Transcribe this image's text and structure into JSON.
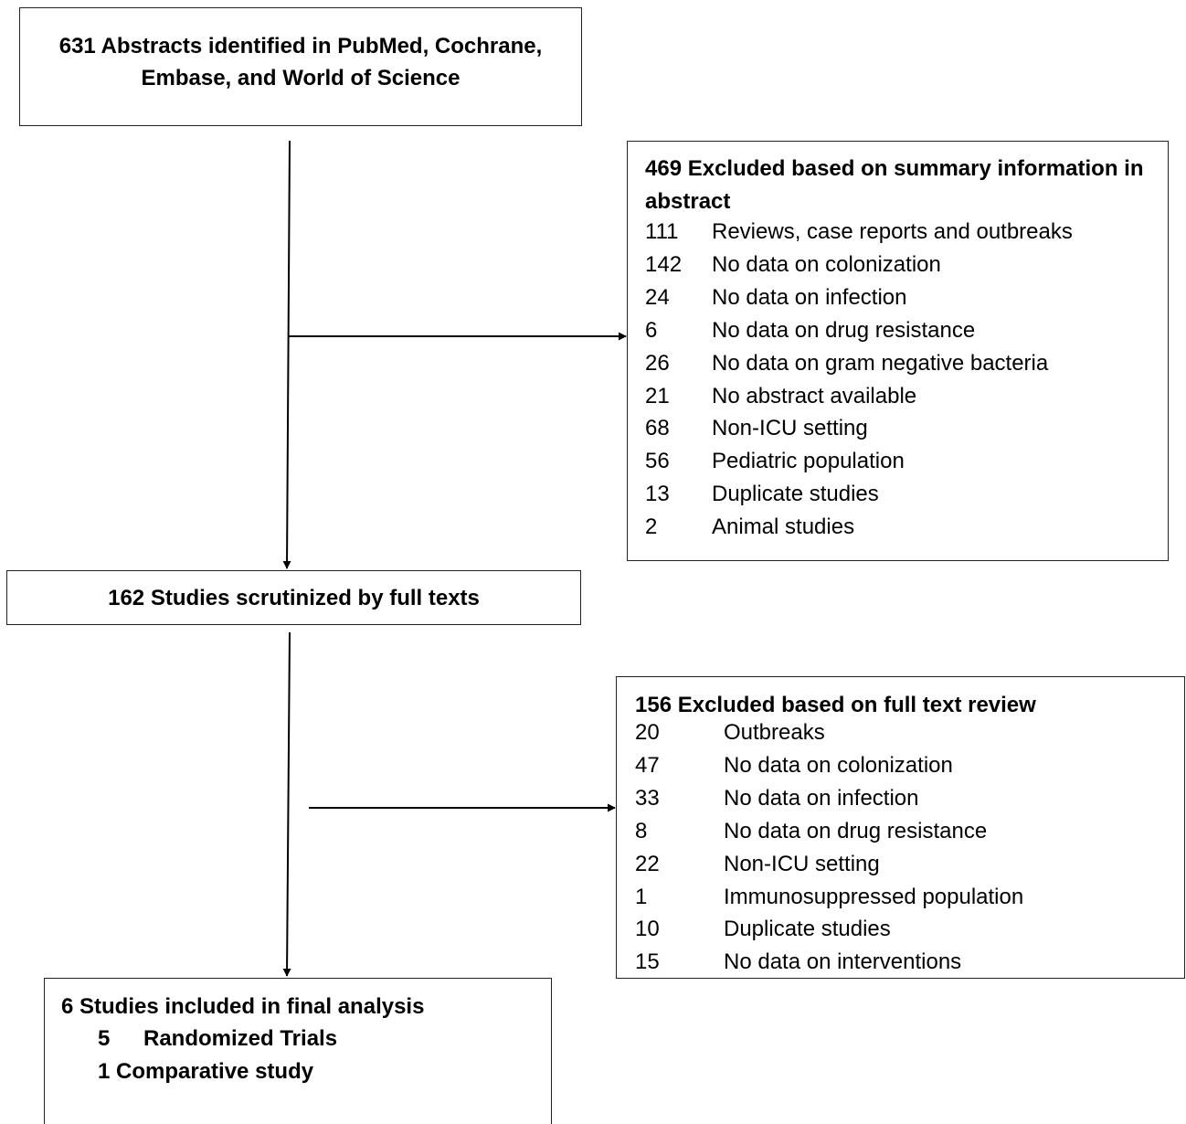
{
  "identified": {
    "text": "631 Abstracts identified in PubMed, Cochrane, Embase, and World of Science"
  },
  "excluded_abstract": {
    "heading": "469 Excluded based on summary information in abstract",
    "items": [
      {
        "n": "111",
        "label": "Reviews, case reports and outbreaks"
      },
      {
        "n": "142",
        "label": "No data on colonization"
      },
      {
        "n": "24",
        "label": "No data on infection"
      },
      {
        "n": "6",
        "label": "No data on drug resistance"
      },
      {
        "n": "26",
        "label": "No data on gram negative bacteria"
      },
      {
        "n": "21",
        "label": "No abstract available"
      },
      {
        "n": "68",
        "label": "Non-ICU setting"
      },
      {
        "n": "56",
        "label": "Pediatric population"
      },
      {
        "n": "13",
        "label": "Duplicate studies"
      },
      {
        "n": "2",
        "label": "Animal studies"
      }
    ]
  },
  "scrutinized": {
    "text": "162 Studies scrutinized by full texts"
  },
  "excluded_fulltext": {
    "heading": "156 Excluded based on full text review",
    "items": [
      {
        "n": "20",
        "label": "Outbreaks"
      },
      {
        "n": "47",
        "label": "No data on colonization"
      },
      {
        "n": "33",
        "label": "No data on infection"
      },
      {
        "n": "8",
        "label": "No data on drug resistance"
      },
      {
        "n": "22",
        "label": "Non-ICU setting"
      },
      {
        "n": "1",
        "label": "Immunosuppressed population"
      },
      {
        "n": "10",
        "label": "Duplicate studies"
      },
      {
        "n": "15",
        "label": "No data on interventions"
      }
    ]
  },
  "included": {
    "heading": "6 Studies included in final analysis",
    "line1_n": "5",
    "line1_label": "Randomized Trials",
    "line2": "1 Comparative study"
  }
}
